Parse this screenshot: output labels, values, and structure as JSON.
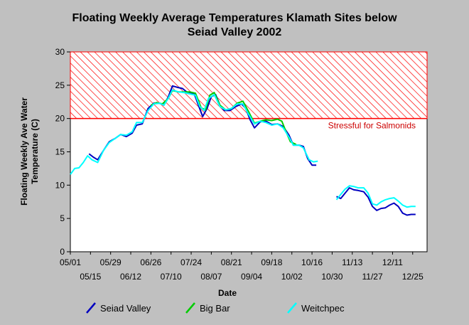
{
  "chart_data": {
    "type": "line",
    "title_line1": "Floating Weekly Average Temperatures Klamath Sites below",
    "title_line2": "Seiad Valley 2002",
    "xlabel": "Date",
    "ylabel_line1": "Floating Weekly Ave Water",
    "ylabel_line2": "Temperature (C)",
    "ylim": [
      0,
      30
    ],
    "yticks": [
      0,
      5,
      10,
      15,
      20,
      25,
      30
    ],
    "xlim": [
      "2002-05-01",
      "2003-01-04"
    ],
    "xticks_upper": [
      "05/01",
      "05/29",
      "06/26",
      "07/24",
      "08/21",
      "09/18",
      "10/16",
      "11/13",
      "12/11"
    ],
    "xticks_lower": [
      "05/15",
      "06/12",
      "07/10",
      "08/07",
      "09/04",
      "10/02",
      "10/30",
      "11/27",
      "12/25"
    ],
    "threshold": {
      "value": 20,
      "label": "Stressful for Salmonids",
      "band_to": 30,
      "color": "#ff0000"
    },
    "grid": false,
    "legend_position": "bottom",
    "series": [
      {
        "name": "Seiad Valley",
        "color": "#0000c0",
        "points": [
          {
            "x": "2002-05-14",
            "y": 14.7
          },
          {
            "x": "2002-05-17",
            "y": 14.2
          },
          {
            "x": "2002-05-20",
            "y": 13.8
          },
          {
            "x": "2002-05-24",
            "y": 15.2
          },
          {
            "x": "2002-05-28",
            "y": 16.5
          },
          {
            "x": "2002-06-01",
            "y": 17.0
          },
          {
            "x": "2002-06-05",
            "y": 17.6
          },
          {
            "x": "2002-06-09",
            "y": 17.3
          },
          {
            "x": "2002-06-13",
            "y": 17.8
          },
          {
            "x": "2002-06-16",
            "y": 19.0
          },
          {
            "x": "2002-06-20",
            "y": 19.2
          },
          {
            "x": "2002-06-24",
            "y": 21.5
          },
          {
            "x": "2002-06-28",
            "y": 22.3
          },
          {
            "x": "2002-07-02",
            "y": 22.3
          },
          {
            "x": "2002-07-05",
            "y": 22.0
          },
          {
            "x": "2002-07-08",
            "y": 23.2
          },
          {
            "x": "2002-07-11",
            "y": 24.9
          },
          {
            "x": "2002-07-14",
            "y": 24.7
          },
          {
            "x": "2002-07-18",
            "y": 24.5
          },
          {
            "x": "2002-07-22",
            "y": 23.8
          },
          {
            "x": "2002-07-26",
            "y": 23.8
          },
          {
            "x": "2002-07-29",
            "y": 22.0
          },
          {
            "x": "2002-08-01",
            "y": 20.3
          },
          {
            "x": "2002-08-04",
            "y": 21.5
          },
          {
            "x": "2002-08-07",
            "y": 23.3
          },
          {
            "x": "2002-08-10",
            "y": 23.6
          },
          {
            "x": "2002-08-13",
            "y": 22.0
          },
          {
            "x": "2002-08-16",
            "y": 21.2
          },
          {
            "x": "2002-08-20",
            "y": 21.2
          },
          {
            "x": "2002-08-24",
            "y": 21.8
          },
          {
            "x": "2002-08-28",
            "y": 22.2
          },
          {
            "x": "2002-08-31",
            "y": 21.5
          },
          {
            "x": "2002-09-03",
            "y": 19.8
          },
          {
            "x": "2002-09-06",
            "y": 18.6
          },
          {
            "x": "2002-09-10",
            "y": 19.5
          },
          {
            "x": "2002-09-14",
            "y": 19.6
          },
          {
            "x": "2002-09-18",
            "y": 19.1
          },
          {
            "x": "2002-09-22",
            "y": 19.2
          },
          {
            "x": "2002-09-26",
            "y": 18.8
          },
          {
            "x": "2002-09-30",
            "y": 17.5
          },
          {
            "x": "2002-10-03",
            "y": 16.0
          },
          {
            "x": "2002-10-07",
            "y": 16.0
          },
          {
            "x": "2002-10-10",
            "y": 15.8
          },
          {
            "x": "2002-10-13",
            "y": 14.0
          },
          {
            "x": "2002-10-16",
            "y": 13.0
          },
          {
            "x": "2002-10-19",
            "y": 13.0
          },
          {
            "x": null,
            "y": null
          },
          {
            "x": "2002-11-02",
            "y": 8.3
          },
          {
            "x": "2002-11-05",
            "y": 8.0
          },
          {
            "x": "2002-11-08",
            "y": 8.8
          },
          {
            "x": "2002-11-11",
            "y": 9.6
          },
          {
            "x": "2002-11-14",
            "y": 9.3
          },
          {
            "x": "2002-11-17",
            "y": 9.2
          },
          {
            "x": "2002-11-21",
            "y": 9.0
          },
          {
            "x": "2002-11-24",
            "y": 8.2
          },
          {
            "x": "2002-11-27",
            "y": 6.8
          },
          {
            "x": "2002-11-30",
            "y": 6.2
          },
          {
            "x": "2002-12-03",
            "y": 6.5
          },
          {
            "x": "2002-12-06",
            "y": 6.6
          },
          {
            "x": "2002-12-09",
            "y": 7.0
          },
          {
            "x": "2002-12-12",
            "y": 7.3
          },
          {
            "x": "2002-12-15",
            "y": 6.8
          },
          {
            "x": "2002-12-18",
            "y": 5.8
          },
          {
            "x": "2002-12-21",
            "y": 5.5
          },
          {
            "x": "2002-12-24",
            "y": 5.6
          },
          {
            "x": "2002-12-27",
            "y": 5.6
          }
        ]
      },
      {
        "name": "Big Bar",
        "color": "#00cc00",
        "points": [
          {
            "x": "2002-06-26",
            "y": 22.0
          },
          {
            "x": "2002-06-30",
            "y": 22.4
          },
          {
            "x": "2002-07-04",
            "y": 22.2
          },
          {
            "x": "2002-07-08",
            "y": 23.0
          },
          {
            "x": "2002-07-11",
            "y": 24.2
          },
          {
            "x": "2002-07-15",
            "y": 24.0
          },
          {
            "x": "2002-07-19",
            "y": 24.0
          },
          {
            "x": "2002-07-23",
            "y": 24.0
          },
          {
            "x": "2002-07-27",
            "y": 23.8
          },
          {
            "x": "2002-07-31",
            "y": 21.6
          },
          {
            "x": "2002-08-03",
            "y": 21.3
          },
          {
            "x": "2002-08-06",
            "y": 23.5
          },
          {
            "x": "2002-08-09",
            "y": 23.9
          },
          {
            "x": "2002-08-13",
            "y": 22.0
          },
          {
            "x": "2002-08-17",
            "y": 21.3
          },
          {
            "x": "2002-08-21",
            "y": 21.5
          },
          {
            "x": "2002-08-25",
            "y": 22.3
          },
          {
            "x": "2002-08-29",
            "y": 22.6
          },
          {
            "x": "2002-09-02",
            "y": 21.0
          },
          {
            "x": "2002-09-06",
            "y": 19.3
          },
          {
            "x": "2002-09-10",
            "y": 19.6
          },
          {
            "x": "2002-09-14",
            "y": 19.8
          },
          {
            "x": "2002-09-18",
            "y": 19.7
          },
          {
            "x": "2002-09-22",
            "y": 19.9
          },
          {
            "x": "2002-09-25",
            "y": 19.6
          },
          {
            "x": "2002-09-28",
            "y": 18.0
          },
          {
            "x": "2002-10-01",
            "y": 16.5
          },
          {
            "x": "2002-10-05",
            "y": 16.1
          }
        ]
      },
      {
        "name": "Weitchpec",
        "color": "#00ffff",
        "points": [
          {
            "x": "2002-05-01",
            "y": 11.6
          },
          {
            "x": "2002-05-04",
            "y": 12.5
          },
          {
            "x": "2002-05-07",
            "y": 12.6
          },
          {
            "x": "2002-05-10",
            "y": 13.4
          },
          {
            "x": "2002-05-13",
            "y": 14.4
          },
          {
            "x": "2002-05-16",
            "y": 13.8
          },
          {
            "x": "2002-05-20",
            "y": 13.4
          },
          {
            "x": "2002-05-24",
            "y": 15.2
          },
          {
            "x": "2002-05-28",
            "y": 16.4
          },
          {
            "x": "2002-06-01",
            "y": 17.0
          },
          {
            "x": "2002-06-05",
            "y": 17.6
          },
          {
            "x": "2002-06-09",
            "y": 17.5
          },
          {
            "x": "2002-06-13",
            "y": 18.0
          },
          {
            "x": "2002-06-16",
            "y": 19.4
          },
          {
            "x": "2002-06-20",
            "y": 19.4
          },
          {
            "x": "2002-06-24",
            "y": 21.2
          },
          {
            "x": "2002-06-28",
            "y": 22.2
          },
          {
            "x": "2002-07-02",
            "y": 22.3
          },
          {
            "x": "2002-07-05",
            "y": 22.0
          },
          {
            "x": "2002-07-08",
            "y": 23.0
          },
          {
            "x": "2002-07-11",
            "y": 24.3
          },
          {
            "x": "2002-07-15",
            "y": 24.0
          },
          {
            "x": "2002-07-19",
            "y": 23.9
          },
          {
            "x": "2002-07-23",
            "y": 23.7
          },
          {
            "x": "2002-07-27",
            "y": 23.5
          },
          {
            "x": "2002-07-30",
            "y": 21.8
          },
          {
            "x": "2002-08-02",
            "y": 21.2
          },
          {
            "x": "2002-08-05",
            "y": 23.0
          },
          {
            "x": "2002-08-09",
            "y": 23.6
          },
          {
            "x": "2002-08-13",
            "y": 21.8
          },
          {
            "x": "2002-08-17",
            "y": 21.3
          },
          {
            "x": "2002-08-21",
            "y": 21.5
          },
          {
            "x": "2002-08-25",
            "y": 22.2
          },
          {
            "x": "2002-08-29",
            "y": 22.2
          },
          {
            "x": "2002-09-02",
            "y": 20.6
          },
          {
            "x": "2002-09-06",
            "y": 19.2
          },
          {
            "x": "2002-09-10",
            "y": 19.6
          },
          {
            "x": "2002-09-14",
            "y": 19.4
          },
          {
            "x": "2002-09-18",
            "y": 19.0
          },
          {
            "x": "2002-09-22",
            "y": 19.2
          },
          {
            "x": "2002-09-26",
            "y": 18.6
          },
          {
            "x": "2002-09-30",
            "y": 17.2
          },
          {
            "x": "2002-10-03",
            "y": 16.0
          },
          {
            "x": "2002-10-07",
            "y": 16.0
          },
          {
            "x": "2002-10-10",
            "y": 15.6
          },
          {
            "x": "2002-10-14",
            "y": 13.8
          },
          {
            "x": "2002-10-17",
            "y": 13.5
          },
          {
            "x": "2002-10-20",
            "y": 13.6
          },
          {
            "x": null,
            "y": null
          },
          {
            "x": "2002-11-02",
            "y": 7.8
          },
          {
            "x": "2002-11-05",
            "y": 8.6
          },
          {
            "x": "2002-11-08",
            "y": 9.4
          },
          {
            "x": "2002-11-11",
            "y": 9.9
          },
          {
            "x": "2002-11-14",
            "y": 9.8
          },
          {
            "x": "2002-11-17",
            "y": 9.6
          },
          {
            "x": "2002-11-21",
            "y": 9.6
          },
          {
            "x": "2002-11-24",
            "y": 8.8
          },
          {
            "x": "2002-11-27",
            "y": 7.2
          },
          {
            "x": "2002-11-30",
            "y": 7.0
          },
          {
            "x": "2002-12-03",
            "y": 7.5
          },
          {
            "x": "2002-12-06",
            "y": 7.8
          },
          {
            "x": "2002-12-09",
            "y": 8.0
          },
          {
            "x": "2002-12-12",
            "y": 8.1
          },
          {
            "x": "2002-12-15",
            "y": 7.6
          },
          {
            "x": "2002-12-18",
            "y": 7.0
          },
          {
            "x": "2002-12-21",
            "y": 6.7
          },
          {
            "x": "2002-12-24",
            "y": 6.8
          },
          {
            "x": "2002-12-27",
            "y": 6.8
          }
        ]
      }
    ]
  }
}
